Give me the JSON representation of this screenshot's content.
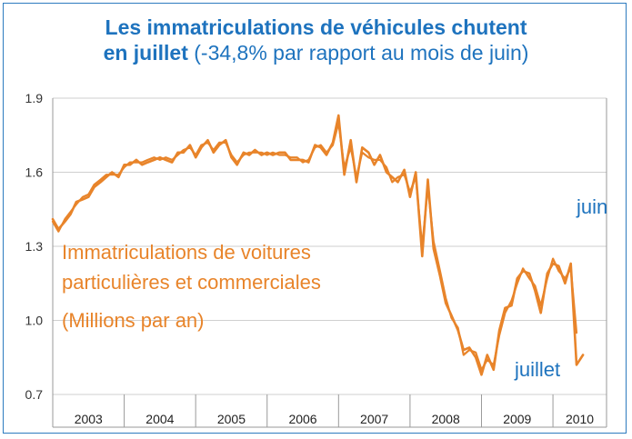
{
  "chart_data": {
    "type": "line",
    "title_bold": "Les immatriculations de véhicules chutent",
    "title_line2_bold": "en juillet",
    "title_line2_rest": "(-34,8% par rapport au mois de juin)",
    "ylim": [
      0.7,
      1.9
    ],
    "yticks": [
      "1.9",
      "1.6",
      "1.3",
      "1.0",
      "0.7"
    ],
    "ytick_values": [
      1.9,
      1.6,
      1.3,
      1.0,
      0.7
    ],
    "years": [
      "2003",
      "2004",
      "2005",
      "2006",
      "2007",
      "2008",
      "2009",
      "2010"
    ],
    "x_start": 2003.0,
    "x_end": 2010.75,
    "series_color": "#e8842a",
    "annotation_series": [
      "Immatriculations de voitures",
      "particulières et commerciales",
      "(Millions par an)"
    ],
    "annotation_juin": "juin",
    "annotation_juillet": "juillet",
    "series": [
      {
        "values": [
          [
            2003.0,
            1.41
          ],
          [
            2003.08,
            1.37
          ],
          [
            2003.17,
            1.4
          ],
          [
            2003.25,
            1.43
          ],
          [
            2003.33,
            1.48
          ],
          [
            2003.42,
            1.49
          ],
          [
            2003.5,
            1.5
          ],
          [
            2003.58,
            1.54
          ],
          [
            2003.67,
            1.56
          ],
          [
            2003.75,
            1.58
          ],
          [
            2003.83,
            1.6
          ],
          [
            2003.92,
            1.58
          ],
          [
            2004.0,
            1.63
          ],
          [
            2004.08,
            1.63
          ],
          [
            2004.17,
            1.65
          ],
          [
            2004.25,
            1.63
          ],
          [
            2004.33,
            1.64
          ],
          [
            2004.42,
            1.65
          ],
          [
            2004.5,
            1.66
          ],
          [
            2004.58,
            1.65
          ],
          [
            2004.67,
            1.64
          ],
          [
            2004.75,
            1.68
          ],
          [
            2004.83,
            1.68
          ],
          [
            2004.92,
            1.71
          ],
          [
            2005.0,
            1.66
          ],
          [
            2005.08,
            1.7
          ],
          [
            2005.17,
            1.73
          ],
          [
            2005.25,
            1.68
          ],
          [
            2005.33,
            1.71
          ],
          [
            2005.42,
            1.73
          ],
          [
            2005.5,
            1.66
          ],
          [
            2005.58,
            1.63
          ],
          [
            2005.67,
            1.68
          ],
          [
            2005.75,
            1.67
          ],
          [
            2005.83,
            1.69
          ],
          [
            2005.92,
            1.67
          ],
          [
            2006.0,
            1.68
          ],
          [
            2006.08,
            1.67
          ],
          [
            2006.17,
            1.68
          ],
          [
            2006.25,
            1.68
          ],
          [
            2006.33,
            1.65
          ],
          [
            2006.42,
            1.65
          ],
          [
            2006.5,
            1.65
          ],
          [
            2006.58,
            1.64
          ],
          [
            2006.67,
            1.71
          ],
          [
            2006.75,
            1.7
          ],
          [
            2006.83,
            1.67
          ],
          [
            2006.92,
            1.72
          ],
          [
            2007.0,
            1.83
          ],
          [
            2007.08,
            1.59
          ],
          [
            2007.17,
            1.73
          ],
          [
            2007.25,
            1.56
          ],
          [
            2007.33,
            1.7
          ],
          [
            2007.42,
            1.68
          ],
          [
            2007.5,
            1.63
          ],
          [
            2007.58,
            1.67
          ],
          [
            2007.67,
            1.6
          ],
          [
            2007.75,
            1.58
          ],
          [
            2007.83,
            1.56
          ],
          [
            2007.92,
            1.61
          ],
          [
            2008.0,
            1.5
          ],
          [
            2008.08,
            1.6
          ],
          [
            2008.17,
            1.26
          ],
          [
            2008.25,
            1.57
          ],
          [
            2008.33,
            1.29
          ],
          [
            2008.42,
            1.18
          ],
          [
            2008.5,
            1.07
          ],
          [
            2008.58,
            1.02
          ],
          [
            2008.67,
            0.96
          ],
          [
            2008.75,
            0.88
          ],
          [
            2008.83,
            0.89
          ],
          [
            2008.92,
            0.85
          ],
          [
            2009.0,
            0.78
          ],
          [
            2009.08,
            0.86
          ],
          [
            2009.17,
            0.8
          ],
          [
            2009.25,
            0.96
          ],
          [
            2009.33,
            1.05
          ],
          [
            2009.42,
            1.06
          ],
          [
            2009.5,
            1.17
          ],
          [
            2009.58,
            1.2
          ],
          [
            2009.67,
            1.19
          ],
          [
            2009.75,
            1.12
          ],
          [
            2009.83,
            1.03
          ],
          [
            2009.92,
            1.19
          ],
          [
            2010.0,
            1.23
          ],
          [
            2010.08,
            1.22
          ],
          [
            2010.17,
            1.15
          ],
          [
            2010.25,
            1.23
          ],
          [
            2010.33,
            0.82
          ],
          [
            2010.42,
            0.86
          ]
        ]
      },
      {
        "values": [
          [
            2003.0,
            1.4
          ],
          [
            2003.08,
            1.36
          ],
          [
            2003.17,
            1.41
          ],
          [
            2003.25,
            1.44
          ],
          [
            2003.33,
            1.47
          ],
          [
            2003.42,
            1.5
          ],
          [
            2003.5,
            1.51
          ],
          [
            2003.58,
            1.55
          ],
          [
            2003.67,
            1.57
          ],
          [
            2003.75,
            1.59
          ],
          [
            2003.83,
            1.59
          ],
          [
            2003.92,
            1.59
          ],
          [
            2004.0,
            1.62
          ],
          [
            2004.08,
            1.64
          ],
          [
            2004.17,
            1.64
          ],
          [
            2004.25,
            1.64
          ],
          [
            2004.33,
            1.65
          ],
          [
            2004.42,
            1.66
          ],
          [
            2004.5,
            1.65
          ],
          [
            2004.58,
            1.66
          ],
          [
            2004.67,
            1.65
          ],
          [
            2004.75,
            1.67
          ],
          [
            2004.83,
            1.69
          ],
          [
            2004.92,
            1.7
          ],
          [
            2005.0,
            1.67
          ],
          [
            2005.08,
            1.71
          ],
          [
            2005.17,
            1.72
          ],
          [
            2005.25,
            1.69
          ],
          [
            2005.33,
            1.72
          ],
          [
            2005.42,
            1.72
          ],
          [
            2005.5,
            1.67
          ],
          [
            2005.58,
            1.64
          ],
          [
            2005.67,
            1.67
          ],
          [
            2005.75,
            1.68
          ],
          [
            2005.83,
            1.68
          ],
          [
            2005.92,
            1.68
          ],
          [
            2006.0,
            1.67
          ],
          [
            2006.08,
            1.68
          ],
          [
            2006.17,
            1.67
          ],
          [
            2006.25,
            1.67
          ],
          [
            2006.33,
            1.66
          ],
          [
            2006.42,
            1.66
          ],
          [
            2006.5,
            1.64
          ],
          [
            2006.58,
            1.65
          ],
          [
            2006.67,
            1.7
          ],
          [
            2006.75,
            1.71
          ],
          [
            2006.83,
            1.68
          ],
          [
            2006.92,
            1.71
          ],
          [
            2007.0,
            1.8
          ],
          [
            2007.08,
            1.62
          ],
          [
            2007.17,
            1.7
          ],
          [
            2007.25,
            1.58
          ],
          [
            2007.33,
            1.68
          ],
          [
            2007.42,
            1.66
          ],
          [
            2007.5,
            1.65
          ],
          [
            2007.58,
            1.65
          ],
          [
            2007.67,
            1.62
          ],
          [
            2007.75,
            1.56
          ],
          [
            2007.83,
            1.58
          ],
          [
            2007.92,
            1.59
          ],
          [
            2008.0,
            1.52
          ],
          [
            2008.08,
            1.58
          ],
          [
            2008.17,
            1.3
          ],
          [
            2008.25,
            1.54
          ],
          [
            2008.33,
            1.32
          ],
          [
            2008.42,
            1.2
          ],
          [
            2008.5,
            1.09
          ],
          [
            2008.58,
            1.01
          ],
          [
            2008.67,
            0.97
          ],
          [
            2008.75,
            0.86
          ],
          [
            2008.83,
            0.88
          ],
          [
            2008.92,
            0.87
          ],
          [
            2009.0,
            0.8
          ],
          [
            2009.08,
            0.84
          ],
          [
            2009.17,
            0.82
          ],
          [
            2009.25,
            0.94
          ],
          [
            2009.33,
            1.03
          ],
          [
            2009.42,
            1.08
          ],
          [
            2009.5,
            1.15
          ],
          [
            2009.58,
            1.21
          ],
          [
            2009.67,
            1.17
          ],
          [
            2009.75,
            1.14
          ],
          [
            2009.83,
            1.06
          ],
          [
            2009.92,
            1.17
          ],
          [
            2010.0,
            1.25
          ],
          [
            2010.08,
            1.2
          ],
          [
            2010.17,
            1.17
          ],
          [
            2010.25,
            1.21
          ],
          [
            2010.33,
            0.95
          ]
        ]
      }
    ]
  }
}
